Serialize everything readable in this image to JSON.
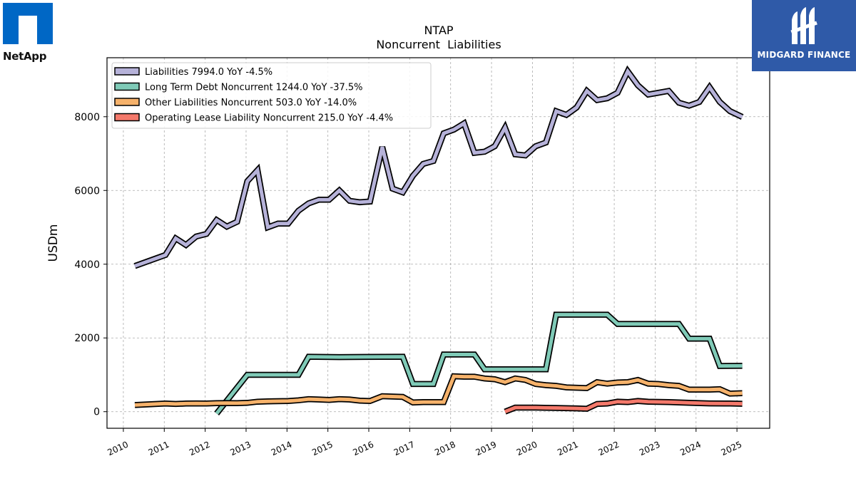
{
  "logos": {
    "left": {
      "name": "NetApp",
      "color": "#0067c5"
    },
    "right": {
      "name": "MIDGARD FINANCE",
      "color": "#2f5aa8"
    }
  },
  "chart_data": {
    "type": "line",
    "title": "NTAP",
    "subtitle": "Noncurrent  Liabilities",
    "ylabel": "USDm",
    "xlabel": "",
    "xlim": [
      2009.6,
      2025.8
    ],
    "ylim": [
      -450,
      9600
    ],
    "x_ticks": [
      2010,
      2011,
      2012,
      2013,
      2014,
      2015,
      2016,
      2017,
      2018,
      2019,
      2020,
      2021,
      2022,
      2023,
      2024,
      2025
    ],
    "y_ticks": [
      0,
      2000,
      4000,
      6000,
      8000
    ],
    "grid": true,
    "legend_position": "top-left",
    "series": [
      {
        "name": "Liabilities  7994.0 YoY -4.5%",
        "color": "#b6b2d9",
        "points": [
          [
            2010.28,
            3950
          ],
          [
            2011.03,
            4250
          ],
          [
            2011.28,
            4700
          ],
          [
            2011.53,
            4520
          ],
          [
            2011.78,
            4750
          ],
          [
            2012.03,
            4820
          ],
          [
            2012.28,
            5200
          ],
          [
            2012.53,
            5020
          ],
          [
            2012.78,
            5150
          ],
          [
            2013.03,
            6250
          ],
          [
            2013.28,
            6550
          ],
          [
            2013.53,
            5000
          ],
          [
            2013.78,
            5100
          ],
          [
            2014.03,
            5100
          ],
          [
            2014.28,
            5450
          ],
          [
            2014.53,
            5650
          ],
          [
            2014.78,
            5750
          ],
          [
            2015.03,
            5750
          ],
          [
            2015.28,
            6000
          ],
          [
            2015.53,
            5720
          ],
          [
            2015.78,
            5680
          ],
          [
            2016.03,
            5700
          ],
          [
            2016.33,
            7180
          ],
          [
            2016.58,
            6050
          ],
          [
            2016.83,
            5950
          ],
          [
            2017.08,
            6400
          ],
          [
            2017.33,
            6720
          ],
          [
            2017.58,
            6800
          ],
          [
            2017.83,
            7550
          ],
          [
            2018.08,
            7650
          ],
          [
            2018.33,
            7820
          ],
          [
            2018.58,
            7020
          ],
          [
            2018.83,
            7050
          ],
          [
            2019.08,
            7200
          ],
          [
            2019.33,
            7700
          ],
          [
            2019.58,
            6980
          ],
          [
            2019.83,
            6950
          ],
          [
            2020.08,
            7200
          ],
          [
            2020.33,
            7300
          ],
          [
            2020.58,
            8150
          ],
          [
            2020.83,
            8050
          ],
          [
            2021.08,
            8250
          ],
          [
            2021.33,
            8700
          ],
          [
            2021.58,
            8450
          ],
          [
            2021.83,
            8500
          ],
          [
            2022.08,
            8650
          ],
          [
            2022.33,
            9230
          ],
          [
            2022.58,
            8850
          ],
          [
            2022.83,
            8600
          ],
          [
            2023.08,
            8650
          ],
          [
            2023.33,
            8700
          ],
          [
            2023.58,
            8380
          ],
          [
            2023.83,
            8300
          ],
          [
            2024.08,
            8400
          ],
          [
            2024.33,
            8800
          ],
          [
            2024.58,
            8400
          ],
          [
            2024.83,
            8150
          ],
          [
            2025.13,
            7994
          ]
        ]
      },
      {
        "name": "Long Term Debt Noncurrent  1244.0 YoY -37.5%",
        "color": "#7fcab7",
        "points": [
          [
            2012.28,
            -50
          ],
          [
            2013.03,
            1000
          ],
          [
            2013.28,
            1000
          ],
          [
            2014.28,
            1000
          ],
          [
            2014.53,
            1490
          ],
          [
            2015.28,
            1480
          ],
          [
            2016.83,
            1490
          ],
          [
            2017.08,
            750
          ],
          [
            2017.58,
            750
          ],
          [
            2017.83,
            1550
          ],
          [
            2018.58,
            1550
          ],
          [
            2018.83,
            1150
          ],
          [
            2020.33,
            1150
          ],
          [
            2020.58,
            2630
          ],
          [
            2021.83,
            2630
          ],
          [
            2022.08,
            2380
          ],
          [
            2023.58,
            2380
          ],
          [
            2023.83,
            1980
          ],
          [
            2024.33,
            1980
          ],
          [
            2024.58,
            1240
          ],
          [
            2025.13,
            1244
          ]
        ]
      },
      {
        "name": "Other Liabilities Noncurrent  503.0 YoY -14.0%",
        "color": "#f6b26b",
        "points": [
          [
            2010.28,
            180
          ],
          [
            2011.03,
            220
          ],
          [
            2011.28,
            210
          ],
          [
            2011.53,
            220
          ],
          [
            2011.78,
            225
          ],
          [
            2012.03,
            220
          ],
          [
            2012.28,
            230
          ],
          [
            2012.53,
            235
          ],
          [
            2012.78,
            230
          ],
          [
            2013.03,
            240
          ],
          [
            2013.28,
            270
          ],
          [
            2013.53,
            280
          ],
          [
            2014.03,
            290
          ],
          [
            2014.28,
            310
          ],
          [
            2014.53,
            340
          ],
          [
            2014.78,
            330
          ],
          [
            2015.03,
            320
          ],
          [
            2015.28,
            340
          ],
          [
            2015.53,
            330
          ],
          [
            2015.78,
            300
          ],
          [
            2016.03,
            290
          ],
          [
            2016.33,
            420
          ],
          [
            2016.58,
            410
          ],
          [
            2016.83,
            400
          ],
          [
            2017.08,
            250
          ],
          [
            2017.33,
            260
          ],
          [
            2017.83,
            260
          ],
          [
            2018.08,
            960
          ],
          [
            2018.33,
            950
          ],
          [
            2018.58,
            950
          ],
          [
            2018.83,
            900
          ],
          [
            2019.08,
            880
          ],
          [
            2019.33,
            800
          ],
          [
            2019.58,
            900
          ],
          [
            2019.83,
            860
          ],
          [
            2020.08,
            750
          ],
          [
            2020.33,
            720
          ],
          [
            2020.58,
            700
          ],
          [
            2020.83,
            660
          ],
          [
            2021.08,
            650
          ],
          [
            2021.33,
            640
          ],
          [
            2021.58,
            800
          ],
          [
            2021.83,
            760
          ],
          [
            2022.08,
            790
          ],
          [
            2022.33,
            800
          ],
          [
            2022.58,
            860
          ],
          [
            2022.83,
            760
          ],
          [
            2023.08,
            750
          ],
          [
            2023.33,
            720
          ],
          [
            2023.58,
            700
          ],
          [
            2023.83,
            600
          ],
          [
            2024.08,
            600
          ],
          [
            2024.33,
            600
          ],
          [
            2024.58,
            610
          ],
          [
            2024.83,
            490
          ],
          [
            2025.13,
            503
          ]
        ]
      },
      {
        "name": "Operating Lease Liability Noncurrent  215.0 YoY -4.4%",
        "color": "#f4796b",
        "points": [
          [
            2019.33,
            0
          ],
          [
            2019.58,
            110
          ],
          [
            2020.08,
            110
          ],
          [
            2020.58,
            100
          ],
          [
            2021.08,
            90
          ],
          [
            2021.33,
            80
          ],
          [
            2021.58,
            210
          ],
          [
            2021.83,
            220
          ],
          [
            2022.08,
            270
          ],
          [
            2022.33,
            260
          ],
          [
            2022.58,
            290
          ],
          [
            2022.83,
            270
          ],
          [
            2023.33,
            260
          ],
          [
            2023.83,
            240
          ],
          [
            2024.33,
            225
          ],
          [
            2024.83,
            220
          ],
          [
            2025.13,
            215
          ]
        ]
      }
    ]
  }
}
